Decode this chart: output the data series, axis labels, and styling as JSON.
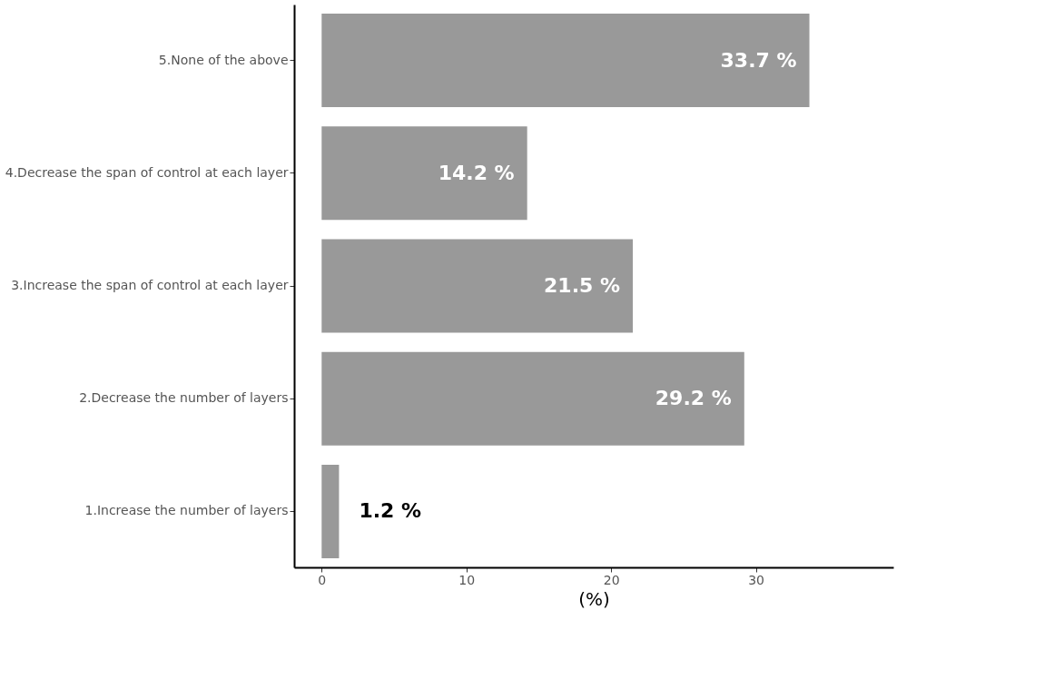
{
  "chart_data": {
    "type": "bar",
    "orientation": "horizontal",
    "xlabel": "(%)",
    "categories": [
      "5.None of the above",
      "4.Decrease the span of control at each layer",
      "3.Increase the span of control at each layer",
      "2.Decrease the number of layers",
      "1.Increase the number of layers"
    ],
    "values": [
      33.7,
      14.2,
      21.5,
      29.2,
      1.2
    ],
    "value_labels": [
      "33.7 %",
      "14.2 %",
      "21.5 %",
      "29.2 %",
      "1.2 %"
    ],
    "color": "#999999",
    "xlim": [
      -1.9,
      39.5
    ],
    "xticks": [
      0,
      10,
      20,
      30
    ],
    "grid": false
  }
}
